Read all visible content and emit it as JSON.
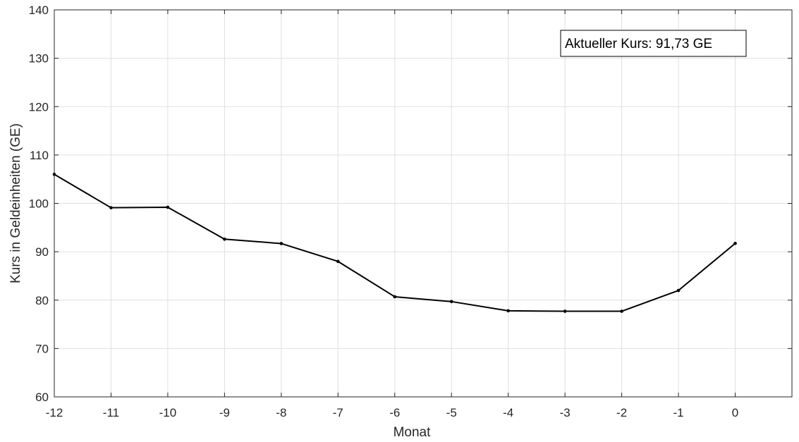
{
  "chart_data": {
    "type": "line",
    "xlabel": "Monat",
    "ylabel": "Kurs in Geldeinheiten (GE)",
    "xlim": [
      -12,
      1
    ],
    "ylim": [
      60,
      140
    ],
    "x_ticks": [
      "-12",
      "-11",
      "-10",
      "-9",
      "-8",
      "-7",
      "-6",
      "-5",
      "-4",
      "-3",
      "-2",
      "-1",
      "0"
    ],
    "y_ticks": [
      "60",
      "70",
      "80",
      "90",
      "100",
      "110",
      "120",
      "130",
      "140"
    ],
    "grid": true,
    "legend": "none",
    "annotation": "Aktueller Kurs: 91,73 GE",
    "series": [
      {
        "x": [
          -12,
          -11,
          -10,
          -9,
          -8,
          -7,
          -6,
          -5,
          -4,
          -3,
          -2,
          -1,
          0
        ],
        "y": [
          106.0,
          99.1,
          99.2,
          92.6,
          91.7,
          88.0,
          80.7,
          79.7,
          77.8,
          77.7,
          77.7,
          82.0,
          91.73
        ],
        "color": "#000000",
        "marker": "dot"
      }
    ]
  }
}
